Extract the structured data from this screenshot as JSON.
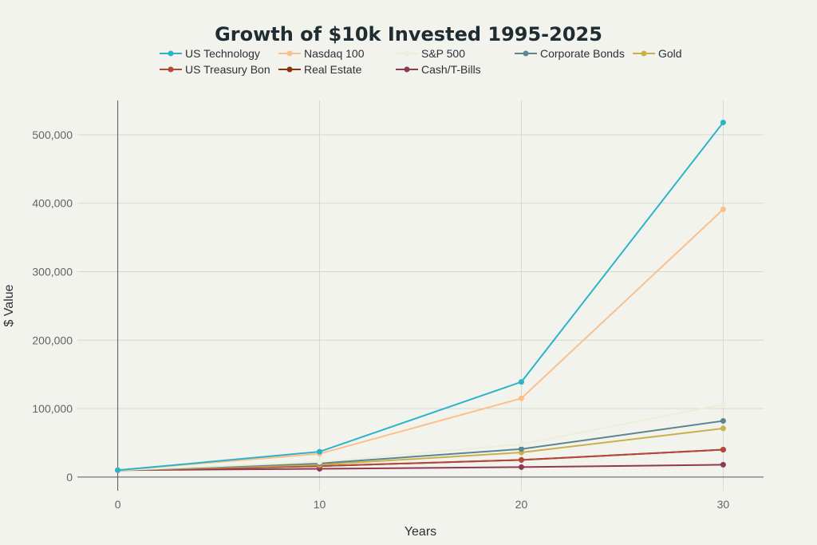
{
  "chart_data": {
    "type": "line",
    "title": "Growth of $10k Invested 1995-2025",
    "xlabel": "Years",
    "ylabel": "$ Value",
    "x": [
      0,
      10,
      20,
      30
    ],
    "xlim": [
      -2,
      32
    ],
    "ylim": [
      -20000,
      550000
    ],
    "x_ticks": [
      0,
      10,
      20,
      30
    ],
    "x_tick_labels": [
      "0",
      "10",
      "20",
      "30"
    ],
    "y_ticks": [
      0,
      100000,
      200000,
      300000,
      400000,
      500000
    ],
    "y_tick_labels": [
      "0",
      "100,000",
      "200,000",
      "300,000",
      "400,000",
      "500,000"
    ],
    "grid": true,
    "legend_position": "top",
    "series": [
      {
        "name": "US Technology",
        "color": "#2ab4c8",
        "values": [
          10000,
          37000,
          139000,
          518000
        ]
      },
      {
        "name": "Nasdaq 100",
        "color": "#fbc08a",
        "values": [
          10000,
          34000,
          115000,
          391000
        ]
      },
      {
        "name": "S&P 500",
        "color": "#ecefd8",
        "values": [
          10000,
          22000,
          48000,
          106000
        ]
      },
      {
        "name": "Corporate Bonds",
        "color": "#5b8590",
        "values": [
          10000,
          20000,
          41000,
          82000
        ]
      },
      {
        "name": "Gold",
        "color": "#c9b04b",
        "values": [
          10000,
          18000,
          36000,
          71000
        ]
      },
      {
        "name": "US Treasury Bon",
        "color": "#b24a3b",
        "values": [
          10000,
          16000,
          25000,
          40000
        ]
      },
      {
        "name": "Real Estate",
        "color": "#8a3213",
        "values": [
          10000,
          16000,
          25000,
          40000
        ]
      },
      {
        "name": "Cash/T-Bills",
        "color": "#8e3a53",
        "values": [
          10000,
          12000,
          14500,
          18000
        ]
      }
    ]
  }
}
